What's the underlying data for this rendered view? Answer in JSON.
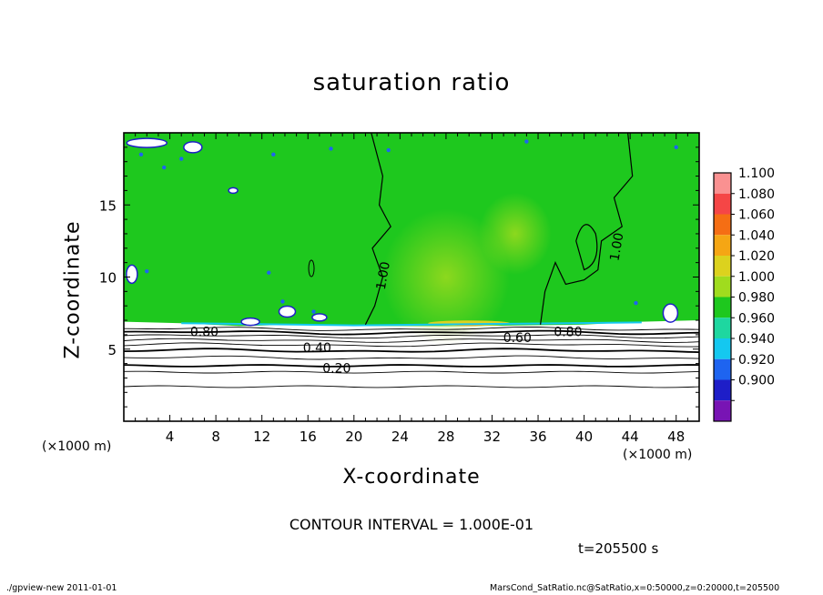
{
  "chart_data": {
    "type": "heatmap",
    "title": "saturation ratio",
    "xlabel": "X-coordinate",
    "ylabel": "Z-coordinate",
    "x_unit": "(×1000 m)",
    "y_unit": "(×1000 m)",
    "xlim": [
      0,
      50
    ],
    "ylim": [
      0,
      20
    ],
    "x_ticks": [
      "4",
      "8",
      "12",
      "16",
      "20",
      "24",
      "28",
      "32",
      "36",
      "40",
      "44",
      "48"
    ],
    "y_ticks": [
      "5",
      "10",
      "15"
    ],
    "x_tick_values": [
      4,
      8,
      12,
      16,
      20,
      24,
      28,
      32,
      36,
      40,
      44,
      48
    ],
    "y_tick_values": [
      5,
      10,
      15
    ],
    "colorbar": {
      "labels": [
        "1.100",
        "1.080",
        "1.060",
        "1.040",
        "1.020",
        "1.000",
        "0.980",
        "0.960",
        "0.940",
        "0.920",
        "0.900"
      ],
      "values": [
        1.1,
        1.08,
        1.06,
        1.04,
        1.02,
        1.0,
        0.98,
        0.96,
        0.94,
        0.92,
        0.9
      ],
      "colors": [
        "#fa9191",
        "#f54646",
        "#f56e14",
        "#f5a614",
        "#dcd21e",
        "#a0dc1e",
        "#1ec81e",
        "#1ed7a0",
        "#14c8f0",
        "#1e64f0",
        "#1e1ec8",
        "#7814b4"
      ]
    },
    "contour_interval": "CONTOUR INTERVAL = 1.000E-01",
    "contour_labels": [
      {
        "text": "0.20",
        "x": 18.5,
        "z": 3.7
      },
      {
        "text": "0.40",
        "x": 16.8,
        "z": 5.1
      },
      {
        "text": "0.60",
        "x": 34.2,
        "z": 5.8
      },
      {
        "text": "0.80",
        "x": 7.0,
        "z": 6.2
      },
      {
        "text": "0.80",
        "x": 38.6,
        "z": 6.2
      },
      {
        "text": "1.00",
        "x": 22.5,
        "z": 10.1
      },
      {
        "text": "1.00",
        "x": 42.8,
        "z": 12.1
      }
    ],
    "time": "t=205500 s",
    "footer_left": "./gpview-new   2011-01-01",
    "footer_right": "MarsCond_SatRatio.nc@SatRatio,x=0:50000,z=0:20000,t=205500"
  }
}
